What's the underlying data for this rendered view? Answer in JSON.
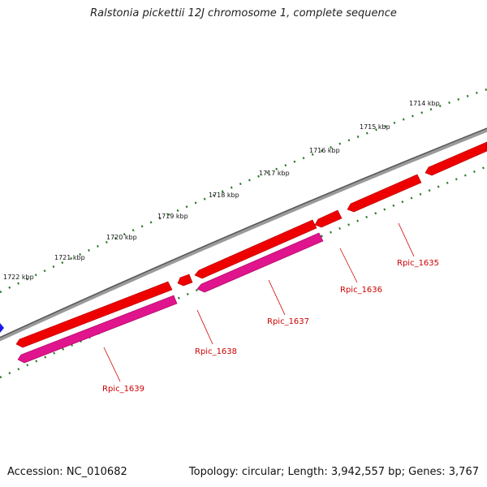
{
  "title": "Ralstonia pickettii 12J chromosome 1, complete sequence",
  "footer": {
    "accession": "Accession: NC_010682",
    "summary": "Topology: circular; Length: 3,942,557 bp; Genes: 3,767"
  },
  "scale_labels": [
    "1722 kbp",
    "1721 kbp",
    "1720 kbp",
    "1719 kbp",
    "1718 kbp",
    "1717 kbp",
    "1716 kbp",
    "1715 kbp",
    "1714 kbp"
  ],
  "genes": [
    {
      "name": "Rpic_1635",
      "strand": "forward",
      "type": "gene+cds"
    },
    {
      "name": "Rpic_1636",
      "strand": "forward",
      "type": "gene"
    },
    {
      "name": "Rpic_1637",
      "strand": "forward",
      "type": "gene+cds"
    },
    {
      "name": "Rpic_1638",
      "strand": "forward",
      "type": "gene"
    },
    {
      "name": "Rpic_1639",
      "strand": "forward",
      "type": "gene+cds"
    }
  ],
  "colors": {
    "gene": "#ee0000",
    "cds": "#e0148c",
    "backbone": "#777777",
    "tick": "#2a7a2a",
    "label": "#cc0000",
    "marker": "#1a1aee"
  }
}
